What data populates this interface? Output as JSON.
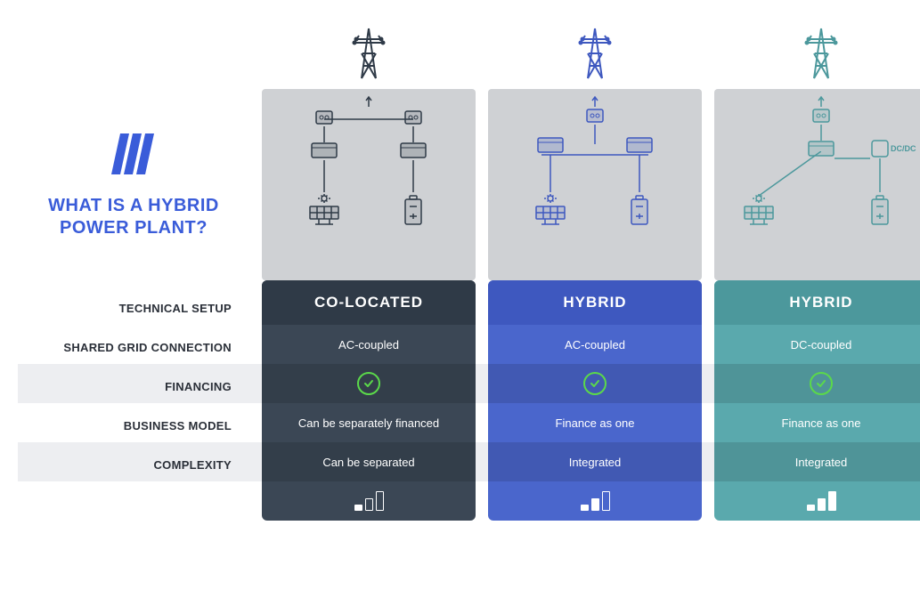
{
  "title": {
    "line1": "WHAT IS A HYBRID",
    "line2": "POWER PLANT?",
    "color": "#3a5cd9"
  },
  "logo": {
    "color": "#3a5cd9"
  },
  "rowLabels": [
    "TECHNICAL SETUP",
    "SHARED GRID CONNECTION",
    "FINANCING",
    "BUSINESS MODEL",
    "COMPLEXITY"
  ],
  "stripes": {
    "color": "#edeef1"
  },
  "checkmark": {
    "color": "#5bd94a"
  },
  "diagramBackground": "#cfd1d4",
  "columns": [
    {
      "key": "co_located",
      "header": "CO-LOCATED",
      "accent": "#3b4755",
      "header_bg": "#2f3a47",
      "body_bg": "#3b4755",
      "diagram_color": "#2f3a47",
      "technical_setup": "AC-coupled",
      "shared_grid": true,
      "financing": "Can be separately financed",
      "business_model": "Can be separated",
      "complexity": {
        "bars": [
          7,
          14,
          22
        ],
        "filled": [
          true,
          false,
          false
        ]
      },
      "dcdc": false,
      "layout": "dual"
    },
    {
      "key": "hybrid_ac",
      "header": "HYBRID",
      "accent": "#4a66cc",
      "header_bg": "#3e58bf",
      "body_bg": "#4a66cc",
      "diagram_color": "#3e58bf",
      "technical_setup": "AC-coupled",
      "shared_grid": true,
      "financing": "Finance as one",
      "business_model": "Integrated",
      "complexity": {
        "bars": [
          7,
          14,
          22
        ],
        "filled": [
          true,
          true,
          false
        ]
      },
      "dcdc": false,
      "layout": "merged"
    },
    {
      "key": "hybrid_dc",
      "header": "HYBRID",
      "accent": "#5aa9ad",
      "header_bg": "#4c989c",
      "body_bg": "#5aa9ad",
      "diagram_color": "#4c989c",
      "technical_setup": "DC-coupled",
      "shared_grid": true,
      "financing": "Finance as one",
      "business_model": "Integrated",
      "complexity": {
        "bars": [
          7,
          14,
          22
        ],
        "filled": [
          true,
          true,
          true
        ]
      },
      "dcdc": true,
      "dcdc_label": "DC/DC",
      "layout": "dc"
    }
  ]
}
